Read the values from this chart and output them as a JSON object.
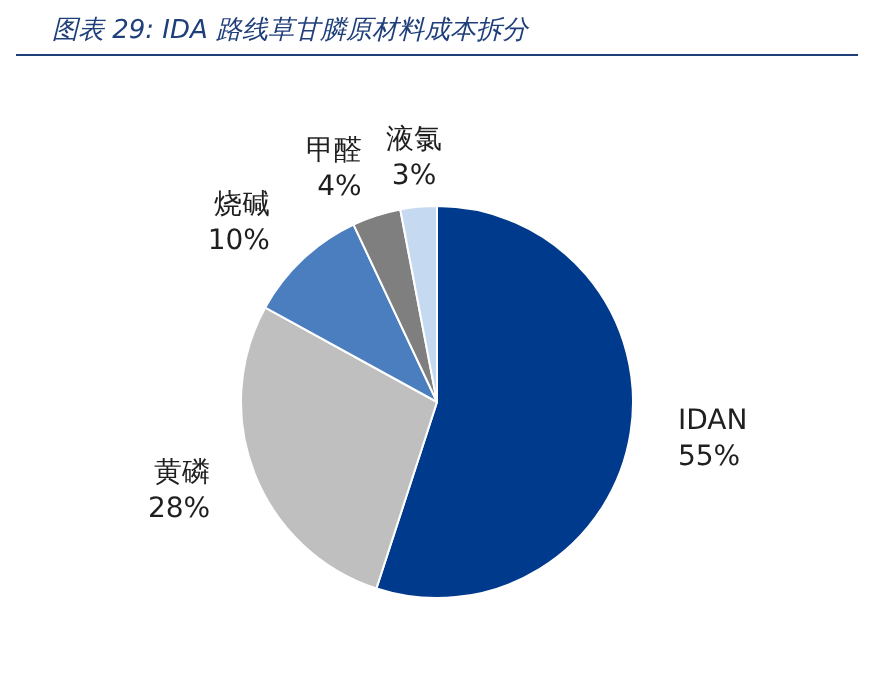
{
  "chart_data": {
    "type": "pie",
    "title": "图表 29:  IDA 路线草甘膦原材料成本拆分",
    "categories": [
      "IDAN",
      "黄磷",
      "烧碱",
      "甲醛",
      "液氯"
    ],
    "values": [
      55,
      28,
      10,
      4,
      3
    ],
    "value_labels": [
      "55%",
      "28%",
      "10%",
      "4%",
      "3%"
    ],
    "colors": [
      "#003a8c",
      "#bfbfbf",
      "#4a7ebf",
      "#7f7f7f",
      "#c5d9f1"
    ],
    "legend": false
  }
}
